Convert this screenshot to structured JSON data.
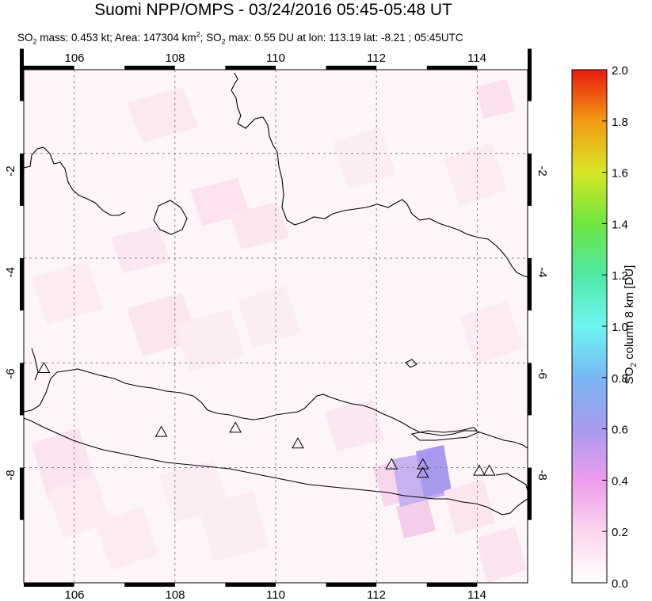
{
  "title": "Suomi NPP/OMPS - 03/24/2016 05:45-05:48 UT",
  "subtitle": {
    "mass_prefix": "SO",
    "mass_sub": "2",
    "mass_text": " mass: 0.453 kt; Area: 147304 km",
    "area_sup": "2",
    "max_prefix": "; SO",
    "max_sub": "2",
    "max_text": " max: 0.55 DU at lon: 113.19 lat: -8.21 ; 05:45UTC"
  },
  "map": {
    "lon_ticks": [
      "106",
      "108",
      "110",
      "112",
      "114"
    ],
    "lat_ticks_left": [
      "-2",
      "-4",
      "-6",
      "-8"
    ],
    "lat_ticks_right": [
      "-2",
      "-4",
      "-6",
      "-8"
    ],
    "lon_values": [
      106,
      108,
      110,
      112,
      114
    ],
    "lat_values": [
      -2,
      -4,
      -6,
      -8
    ],
    "lon_range": [
      105,
      115
    ],
    "lat_range": [
      -10.2,
      -0.4
    ],
    "volcanoes": [
      {
        "lon": 105.4,
        "lat": -6.1
      },
      {
        "lon": 107.73,
        "lat": -7.32
      },
      {
        "lon": 109.2,
        "lat": -7.24
      },
      {
        "lon": 110.44,
        "lat": -7.54
      },
      {
        "lon": 112.3,
        "lat": -7.94
      },
      {
        "lon": 112.92,
        "lat": -7.94
      },
      {
        "lon": 112.92,
        "lat": -8.1
      },
      {
        "lon": 114.04,
        "lat": -8.06
      },
      {
        "lon": 114.24,
        "lat": -8.06
      }
    ]
  },
  "colorbar": {
    "ticks": [
      "2.0",
      "1.8",
      "1.6",
      "1.4",
      "1.2",
      "1.0",
      "0.8",
      "0.6",
      "0.4",
      "0.2",
      "0.0"
    ],
    "label_prefix": "SO",
    "label_sub": "2",
    "label_text": " column 8 km [DU]",
    "range": [
      0.0,
      2.0
    ]
  },
  "colors": {
    "background_pixel": "#fdf3f6",
    "light_pixel": "#fbe4ef",
    "peak_pixel": "#a898ee",
    "coastline": "#000000",
    "grid": "#888888"
  }
}
